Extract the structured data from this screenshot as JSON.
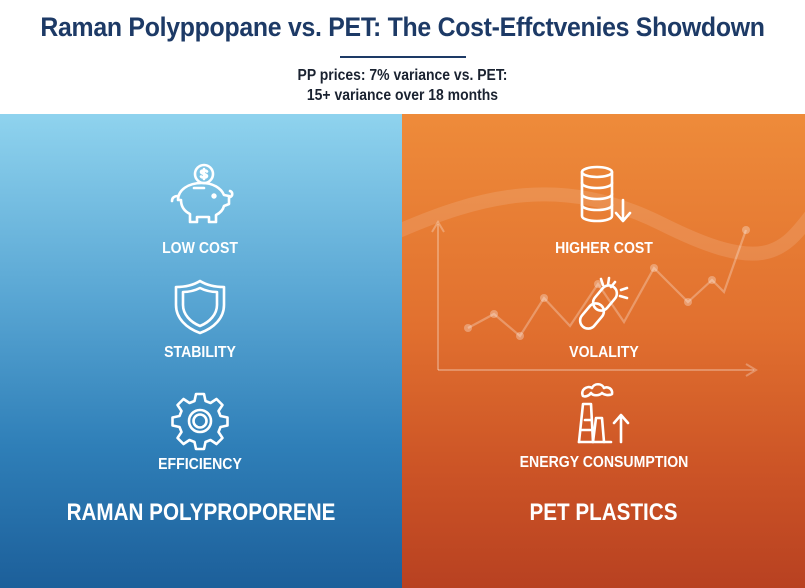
{
  "header": {
    "title": "Raman Polyppopane vs. PET: The Cost-Effctvenies Showdown",
    "subtitle_line1": "PP prices: 7% variance vs. PET:",
    "subtitle_line2": "15+ variance over 18 months"
  },
  "left_panel": {
    "title": "RAMAN POLYPROPORENE",
    "items": [
      {
        "label": "LOW COST",
        "icon": "piggy-bank-icon"
      },
      {
        "label": "STABILITY",
        "icon": "shield-icon"
      },
      {
        "label": "EFFICIENCY",
        "icon": "gear-icon"
      }
    ]
  },
  "right_panel": {
    "title": "PET PLASTICS",
    "items": [
      {
        "label": "HIGHER COST",
        "icon": "coin-stack-down-icon"
      },
      {
        "label": "VOLALITY",
        "icon": "broken-chain-icon"
      },
      {
        "label": "ENERGY CONSUMPTION",
        "icon": "factory-icon"
      }
    ]
  },
  "colors": {
    "title": "#1d3a66",
    "left_top": "#8fd3ee",
    "left_bottom": "#1c5f9a",
    "right_top": "#ee8b3a",
    "right_bottom": "#b84121",
    "icon_stroke": "#ffffff"
  }
}
